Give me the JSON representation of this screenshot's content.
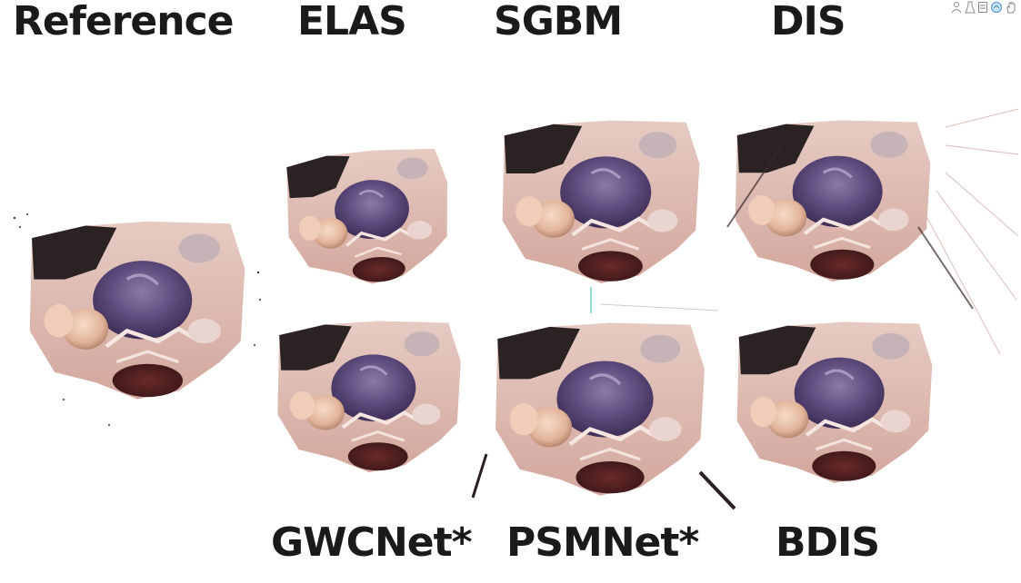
{
  "labels": {
    "reference": "Reference",
    "elas": "ELAS",
    "sgbm": "SGBM",
    "dis": "DIS",
    "gwcnet": "GWCNet*",
    "psmnet": "PSMNet*",
    "bdis": "BDIS"
  },
  "toolbar": {
    "icons": [
      "person-icon",
      "flask-icon",
      "document-icon",
      "share-icon",
      "hand-icon"
    ]
  },
  "colors": {
    "tissue_light": "#e8c9bf",
    "tissue_pink": "#d9a79c",
    "tumor_purple": "#5a4a78",
    "dark_region": "#2a2022",
    "blood_dark": "#4a1e20",
    "text": "#1a1a1a"
  }
}
